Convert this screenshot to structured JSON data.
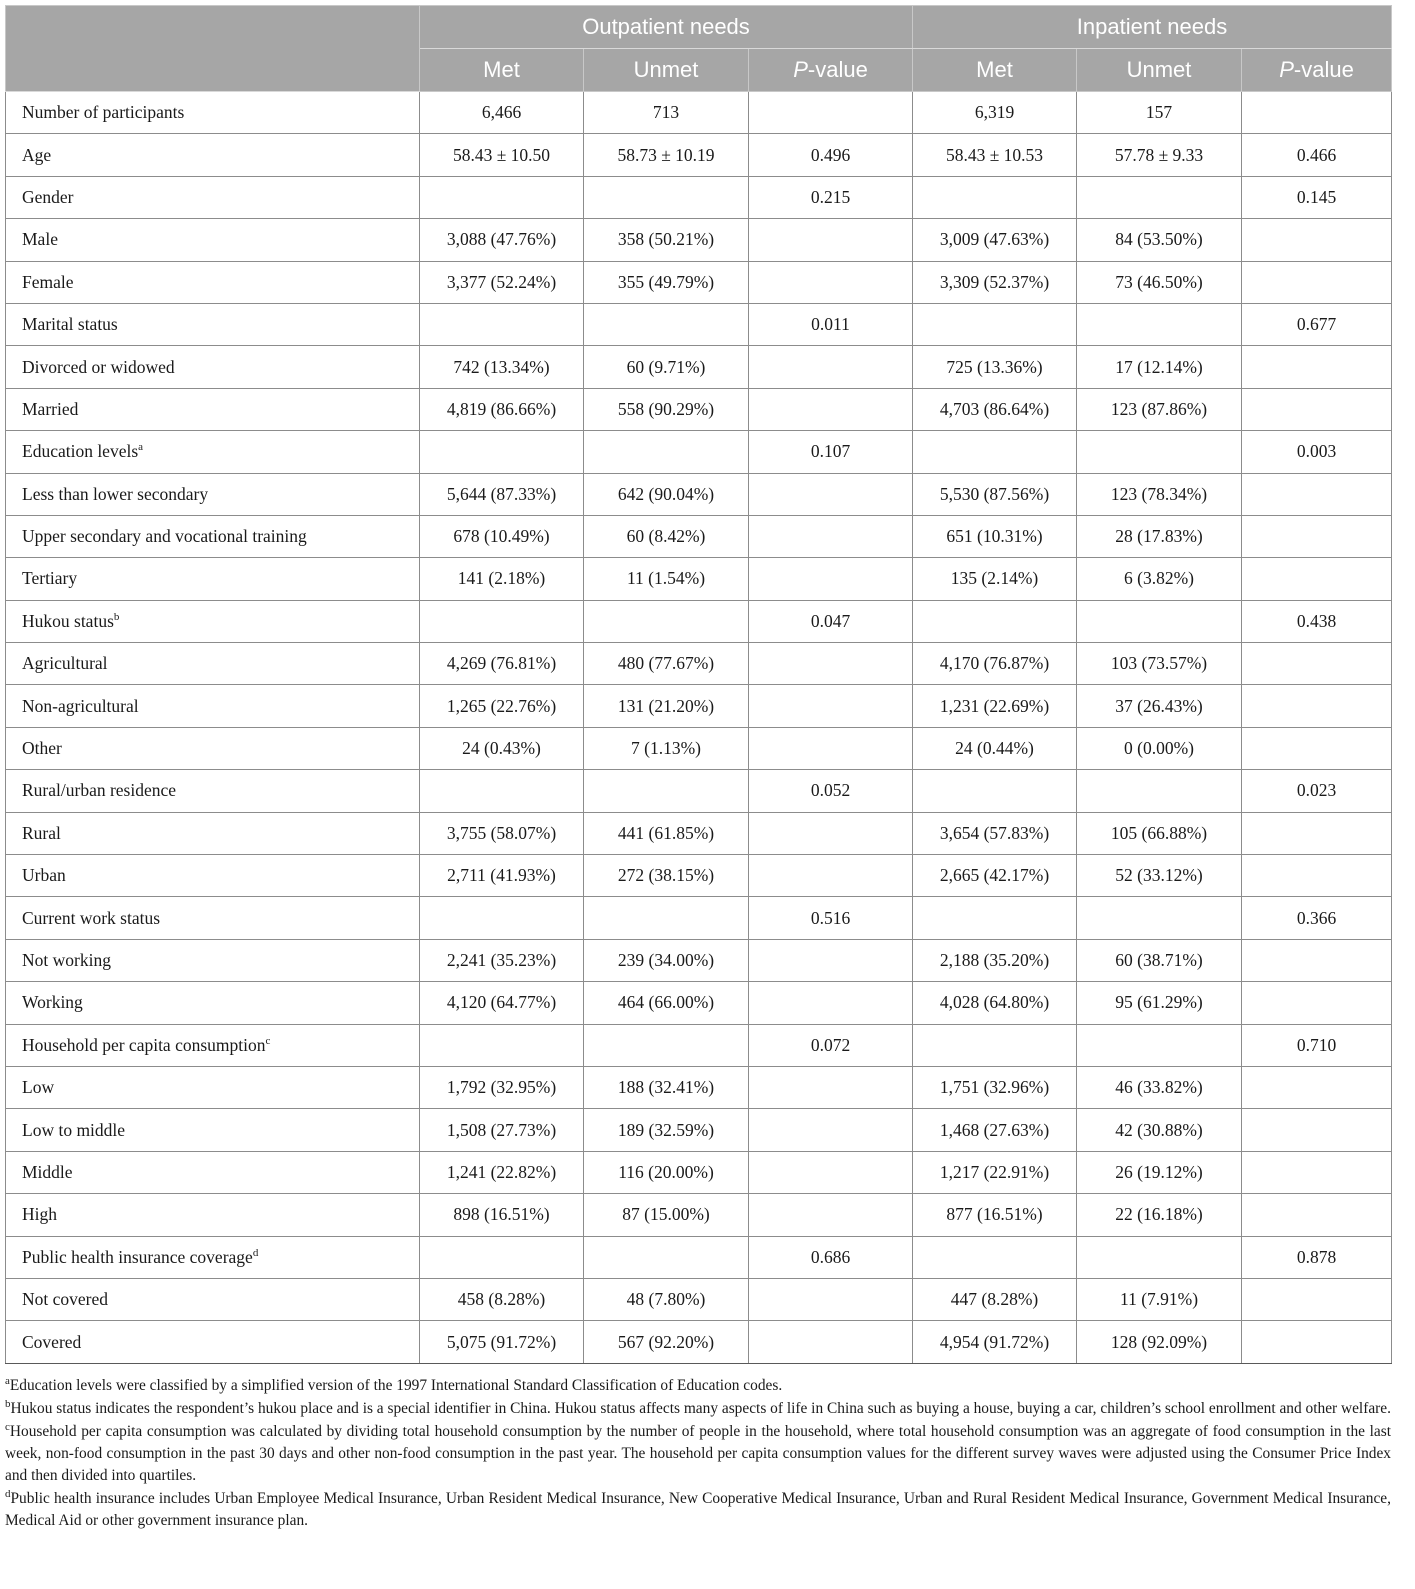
{
  "header": {
    "group_outpatient": "Outpatient needs",
    "group_inpatient": "Inpatient needs",
    "met": "Met",
    "unmet": "Unmet",
    "p_italic": "P",
    "p_suffix": "-value"
  },
  "rows": [
    {
      "label": "Number of participants",
      "sup": "",
      "om": "6,466",
      "ou": "713",
      "op": "",
      "im": "6,319",
      "iu": "157",
      "ip": ""
    },
    {
      "label": "Age",
      "sup": "",
      "om": "58.43 ± 10.50",
      "ou": "58.73 ± 10.19",
      "op": "0.496",
      "im": "58.43 ± 10.53",
      "iu": "57.78 ± 9.33",
      "ip": "0.466"
    },
    {
      "label": "Gender",
      "sup": "",
      "om": "",
      "ou": "",
      "op": "0.215",
      "im": "",
      "iu": "",
      "ip": "0.145"
    },
    {
      "label": "Male",
      "sup": "",
      "om": "3,088 (47.76%)",
      "ou": "358 (50.21%)",
      "op": "",
      "im": "3,009 (47.63%)",
      "iu": "84 (53.50%)",
      "ip": ""
    },
    {
      "label": "Female",
      "sup": "",
      "om": "3,377 (52.24%)",
      "ou": "355 (49.79%)",
      "op": "",
      "im": "3,309 (52.37%)",
      "iu": "73 (46.50%)",
      "ip": ""
    },
    {
      "label": "Marital status",
      "sup": "",
      "om": "",
      "ou": "",
      "op": "0.011",
      "im": "",
      "iu": "",
      "ip": "0.677"
    },
    {
      "label": "Divorced or widowed",
      "sup": "",
      "om": "742 (13.34%)",
      "ou": "60 (9.71%)",
      "op": "",
      "im": "725 (13.36%)",
      "iu": "17 (12.14%)",
      "ip": ""
    },
    {
      "label": "Married",
      "sup": "",
      "om": "4,819 (86.66%)",
      "ou": "558 (90.29%)",
      "op": "",
      "im": "4,703 (86.64%)",
      "iu": "123 (87.86%)",
      "ip": ""
    },
    {
      "label": "Education levels",
      "sup": "a",
      "om": "",
      "ou": "",
      "op": "0.107",
      "im": "",
      "iu": "",
      "ip": "0.003"
    },
    {
      "label": "Less than lower secondary",
      "sup": "",
      "om": "5,644 (87.33%)",
      "ou": "642 (90.04%)",
      "op": "",
      "im": "5,530 (87.56%)",
      "iu": "123 (78.34%)",
      "ip": ""
    },
    {
      "label": "Upper secondary and vocational training",
      "sup": "",
      "om": "678 (10.49%)",
      "ou": "60 (8.42%)",
      "op": "",
      "im": "651 (10.31%)",
      "iu": "28 (17.83%)",
      "ip": ""
    },
    {
      "label": "Tertiary",
      "sup": "",
      "om": "141 (2.18%)",
      "ou": "11 (1.54%)",
      "op": "",
      "im": "135 (2.14%)",
      "iu": "6 (3.82%)",
      "ip": ""
    },
    {
      "label": "Hukou status",
      "sup": "b",
      "om": "",
      "ou": "",
      "op": "0.047",
      "im": "",
      "iu": "",
      "ip": "0.438"
    },
    {
      "label": "Agricultural",
      "sup": "",
      "om": "4,269 (76.81%)",
      "ou": "480 (77.67%)",
      "op": "",
      "im": "4,170 (76.87%)",
      "iu": "103 (73.57%)",
      "ip": ""
    },
    {
      "label": "Non-agricultural",
      "sup": "",
      "om": "1,265 (22.76%)",
      "ou": "131 (21.20%)",
      "op": "",
      "im": "1,231 (22.69%)",
      "iu": "37 (26.43%)",
      "ip": ""
    },
    {
      "label": "Other",
      "sup": "",
      "om": "24 (0.43%)",
      "ou": "7 (1.13%)",
      "op": "",
      "im": "24 (0.44%)",
      "iu": "0 (0.00%)",
      "ip": ""
    },
    {
      "label": "Rural/urban residence",
      "sup": "",
      "om": "",
      "ou": "",
      "op": "0.052",
      "im": "",
      "iu": "",
      "ip": "0.023"
    },
    {
      "label": "Rural",
      "sup": "",
      "om": "3,755 (58.07%)",
      "ou": "441 (61.85%)",
      "op": "",
      "im": "3,654 (57.83%)",
      "iu": "105 (66.88%)",
      "ip": ""
    },
    {
      "label": "Urban",
      "sup": "",
      "om": "2,711 (41.93%)",
      "ou": "272 (38.15%)",
      "op": "",
      "im": "2,665 (42.17%)",
      "iu": "52 (33.12%)",
      "ip": ""
    },
    {
      "label": "Current work status",
      "sup": "",
      "om": "",
      "ou": "",
      "op": "0.516",
      "im": "",
      "iu": "",
      "ip": "0.366"
    },
    {
      "label": "Not working",
      "sup": "",
      "om": "2,241 (35.23%)",
      "ou": "239 (34.00%)",
      "op": "",
      "im": "2,188 (35.20%)",
      "iu": "60 (38.71%)",
      "ip": ""
    },
    {
      "label": "Working",
      "sup": "",
      "om": "4,120 (64.77%)",
      "ou": "464 (66.00%)",
      "op": "",
      "im": "4,028 (64.80%)",
      "iu": "95 (61.29%)",
      "ip": ""
    },
    {
      "label": "Household per capita consumption",
      "sup": "c",
      "om": "",
      "ou": "",
      "op": "0.072",
      "im": "",
      "iu": "",
      "ip": "0.710"
    },
    {
      "label": "Low",
      "sup": "",
      "om": "1,792 (32.95%)",
      "ou": "188 (32.41%)",
      "op": "",
      "im": "1,751 (32.96%)",
      "iu": "46 (33.82%)",
      "ip": ""
    },
    {
      "label": "Low to middle",
      "sup": "",
      "om": "1,508 (27.73%)",
      "ou": "189 (32.59%)",
      "op": "",
      "im": "1,468 (27.63%)",
      "iu": "42 (30.88%)",
      "ip": ""
    },
    {
      "label": "Middle",
      "sup": "",
      "om": "1,241 (22.82%)",
      "ou": "116 (20.00%)",
      "op": "",
      "im": "1,217 (22.91%)",
      "iu": "26 (19.12%)",
      "ip": ""
    },
    {
      "label": "High",
      "sup": "",
      "om": "898 (16.51%)",
      "ou": "87 (15.00%)",
      "op": "",
      "im": "877 (16.51%)",
      "iu": "22 (16.18%)",
      "ip": ""
    },
    {
      "label": "Public health insurance coverage",
      "sup": "d",
      "om": "",
      "ou": "",
      "op": "0.686",
      "im": "",
      "iu": "",
      "ip": "0.878"
    },
    {
      "label": "Not covered",
      "sup": "",
      "om": "458 (8.28%)",
      "ou": "48 (7.80%)",
      "op": "",
      "im": "447 (8.28%)",
      "iu": "11 (7.91%)",
      "ip": ""
    },
    {
      "label": "Covered",
      "sup": "",
      "om": "5,075 (91.72%)",
      "ou": "567 (92.20%)",
      "op": "",
      "im": "4,954 (91.72%)",
      "iu": "128 (92.09%)",
      "ip": ""
    }
  ],
  "footnotes": [
    {
      "mark": "a",
      "text": "Education levels were classified by a simplified version of the 1997 International Standard Classification of Education codes."
    },
    {
      "mark": "b",
      "text": "Hukou status indicates the respondent’s hukou place and is a special identifier in China. Hukou status affects many aspects of life in China such as buying a house, buying a car, children’s school enrollment and other welfare."
    },
    {
      "mark": "c",
      "text": "Household per capita consumption was calculated by dividing total household consumption by the number of people in the household, where total household consumption was an aggregate of food consumption in the last week, non-food consumption in the past 30 days and other non-food consumption in the past year. The household per capita consumption values for the different survey waves were adjusted using the Consumer Price Index and then divided into quartiles."
    },
    {
      "mark": "d",
      "text": "Public health insurance includes Urban Employee Medical Insurance, Urban Resident Medical Insurance, New Cooperative Medical Insurance, Urban and Rural Resident Medical Insurance, Government Medical Insurance, Medical Aid or other government insurance plan."
    }
  ]
}
